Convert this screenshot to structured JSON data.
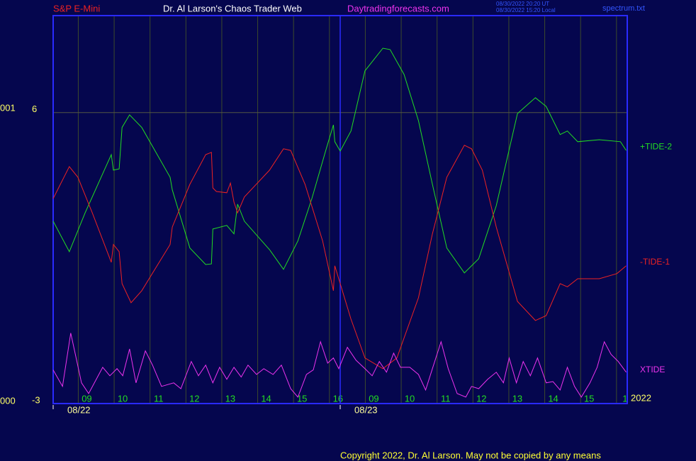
{
  "chart_data": {
    "type": "line",
    "header": {
      "symbol": "S&P E-Mini",
      "title": "Dr. Al Larson's Chaos Trader Web",
      "site": "Daytradingforecasts.com",
      "stamp_ut": "08/30/2022 20:20 UT",
      "stamp_local": "08/30/2022 15:20 Local",
      "file": "spectrum.txt"
    },
    "left_labels": [
      "001",
      "000"
    ],
    "year_label": "2022",
    "copyright": "Copyright 2022, Dr. Al Larson. May not be copied by any means",
    "xlim": [
      8.3,
      24.3
    ],
    "ylim": [
      -3,
      9
    ],
    "yticks": [
      6,
      -3
    ],
    "xticks": [
      {
        "value": 9,
        "label": "09"
      },
      10,
      11,
      12,
      13,
      14,
      15,
      16,
      {
        "value": 17,
        "label": "09"
      },
      {
        "value": 18,
        "label": "10"
      },
      {
        "value": 19,
        "label": "11"
      },
      {
        "value": 20,
        "label": "12"
      },
      {
        "value": 21,
        "label": "13"
      },
      {
        "value": 22,
        "label": "14"
      },
      {
        "value": 23,
        "label": "15"
      },
      {
        "value": 24,
        "label": "1"
      }
    ],
    "date_ticks": [
      {
        "value": 8.3,
        "label": "08/22"
      },
      {
        "value": 16.3,
        "label": "08/23"
      }
    ],
    "grid": true,
    "series": [
      {
        "name": "+TIDE-2",
        "color": "#22dd22",
        "x": [
          8.3,
          8.75,
          9.19,
          9.92,
          9.98,
          10.14,
          10.22,
          10.43,
          10.77,
          11.56,
          11.62,
          12.11,
          12.55,
          12.71,
          12.75,
          13.14,
          13.34,
          13.44,
          13.63,
          14.33,
          14.72,
          15.12,
          15.51,
          15.91,
          16.11,
          16.15,
          16.3,
          16.6,
          16.99,
          17.49,
          17.69,
          18.08,
          18.48,
          18.87,
          19.27,
          19.76,
          20.16,
          20.65,
          21.24,
          21.74,
          22.04,
          22.43,
          22.63,
          22.92,
          23.52,
          24.11,
          24.27
        ],
        "values": [
          2.64,
          1.7,
          2.9,
          4.7,
          4.22,
          4.26,
          5.54,
          5.93,
          5.54,
          4.0,
          3.61,
          1.81,
          1.3,
          1.32,
          2.4,
          2.51,
          2.25,
          3.17,
          2.64,
          1.76,
          1.15,
          2.03,
          3.34,
          4.88,
          5.62,
          5.1,
          4.81,
          5.43,
          7.29,
          7.99,
          7.95,
          7.18,
          5.75,
          3.78,
          1.81,
          1.04,
          1.48,
          3.12,
          5.97,
          6.46,
          6.19,
          5.32,
          5.43,
          5.1,
          5.16,
          5.1,
          4.83
        ]
      },
      {
        "name": "-TIDE-1",
        "color": "#ee2222",
        "x": [
          8.3,
          8.75,
          8.99,
          9.39,
          9.92,
          9.98,
          10.14,
          10.22,
          10.47,
          10.77,
          11.56,
          11.62,
          12.11,
          12.55,
          12.71,
          12.75,
          12.85,
          13.14,
          13.24,
          13.34,
          13.44,
          13.63,
          14.33,
          14.72,
          14.92,
          15.32,
          15.81,
          16.11,
          16.15,
          16.3,
          16.6,
          16.99,
          17.49,
          17.88,
          18.48,
          18.87,
          19.27,
          19.76,
          19.96,
          20.26,
          20.65,
          21.24,
          21.74,
          22.04,
          22.43,
          22.63,
          22.92,
          23.52,
          24.01,
          24.27
        ],
        "values": [
          3.34,
          4.33,
          4.0,
          2.9,
          1.37,
          1.92,
          1.7,
          0.71,
          0.12,
          0.49,
          1.92,
          2.46,
          3.78,
          4.7,
          4.77,
          3.67,
          3.56,
          3.52,
          3.82,
          3.23,
          2.9,
          3.39,
          4.22,
          4.88,
          4.83,
          3.78,
          2.03,
          0.49,
          1.26,
          0.71,
          -0.39,
          -1.59,
          -1.92,
          -1.59,
          0.27,
          2.25,
          4.0,
          4.99,
          4.88,
          4.22,
          2.46,
          0.16,
          -0.43,
          -0.28,
          0.71,
          0.61,
          0.86,
          0.86,
          1.02,
          1.26
        ]
      },
      {
        "name": "XTIDE",
        "color": "#ee33ee",
        "x": [
          8.3,
          8.56,
          8.79,
          9.09,
          9.29,
          9.68,
          9.88,
          10.08,
          10.24,
          10.43,
          10.61,
          10.87,
          11.07,
          11.32,
          11.66,
          11.86,
          12.15,
          12.35,
          12.55,
          12.75,
          12.94,
          13.14,
          13.34,
          13.54,
          13.73,
          13.97,
          14.17,
          14.43,
          14.66,
          14.92,
          15.12,
          15.36,
          15.55,
          15.75,
          15.95,
          16.11,
          16.26,
          16.5,
          16.74,
          16.99,
          17.19,
          17.39,
          17.59,
          17.79,
          17.98,
          18.24,
          18.48,
          18.68,
          18.87,
          19.11,
          19.31,
          19.56,
          19.8,
          19.96,
          20.16,
          20.41,
          20.65,
          20.85,
          21.01,
          21.21,
          21.4,
          21.6,
          21.8,
          22.04,
          22.23,
          22.43,
          22.63,
          22.83,
          23.02,
          23.26,
          23.46,
          23.66,
          23.85,
          24.05,
          24.27
        ],
        "values": [
          -1.96,
          -2.47,
          -0.82,
          -2.36,
          -2.69,
          -1.88,
          -2.14,
          -1.92,
          -2.14,
          -1.31,
          -2.36,
          -1.37,
          -1.81,
          -2.47,
          -2.36,
          -2.54,
          -1.7,
          -2.14,
          -1.81,
          -2.36,
          -1.88,
          -2.25,
          -1.88,
          -2.18,
          -1.81,
          -2.1,
          -1.92,
          -2.1,
          -1.81,
          -2.54,
          -2.8,
          -2.1,
          -1.96,
          -1.09,
          -1.75,
          -1.59,
          -1.92,
          -1.26,
          -1.66,
          -1.92,
          -2.14,
          -1.7,
          -2.03,
          -1.44,
          -1.88,
          -1.88,
          -2.1,
          -2.58,
          -1.92,
          -1.09,
          -1.92,
          -2.69,
          -2.8,
          -2.47,
          -2.54,
          -2.25,
          -2.03,
          -2.36,
          -1.59,
          -2.36,
          -1.7,
          -2.14,
          -1.59,
          -2.36,
          -2.32,
          -2.58,
          -1.88,
          -2.47,
          -2.8,
          -2.36,
          -1.88,
          -1.09,
          -1.48,
          -1.7,
          -2.03
        ]
      }
    ]
  }
}
